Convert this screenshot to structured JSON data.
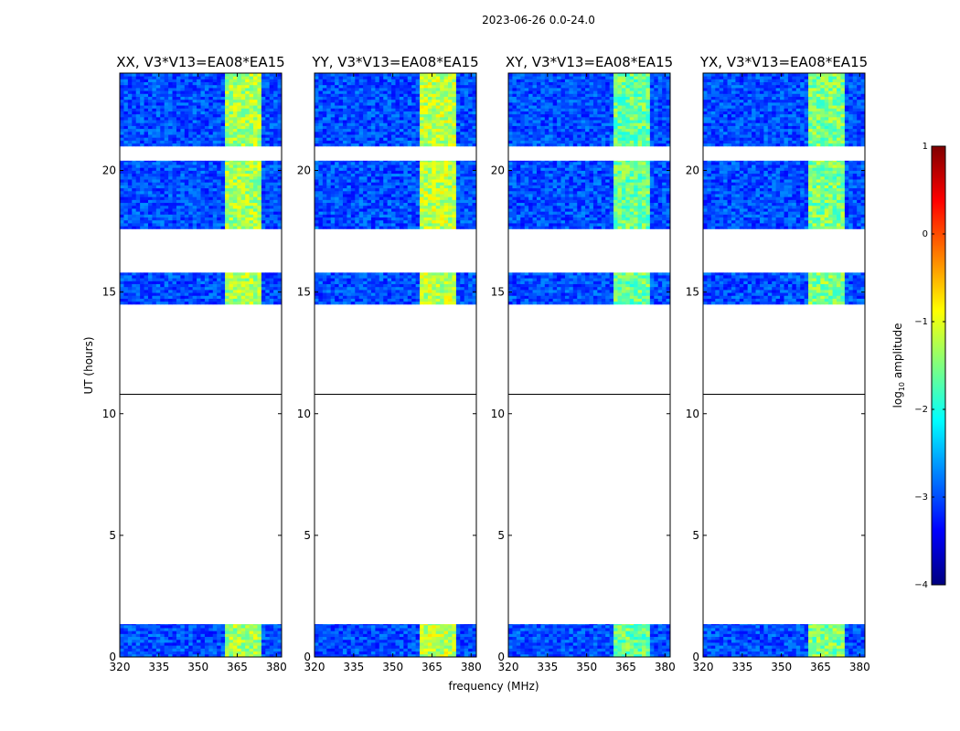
{
  "figure": {
    "suptitle": "2023-06-26 0.0-24.0",
    "xlabel": "frequency (MHz)",
    "ylabel": "UT (hours)"
  },
  "colorbar": {
    "label": "log",
    "label_sub": "10",
    "label_rest": " amplitude",
    "ticks": [
      1,
      0,
      -1,
      -2,
      -3,
      -4
    ],
    "tick_labels": [
      "1",
      "0",
      "−1",
      "−2",
      "−3",
      "−4"
    ],
    "range": [
      -4,
      1
    ],
    "colormap": "jet",
    "colors": [
      "#00007f",
      "#0000ff",
      "#007fff",
      "#00ffff",
      "#7fff7f",
      "#ffff00",
      "#ff7f00",
      "#ff0000",
      "#7f0000"
    ]
  },
  "chart_data": {
    "type": "heatmap",
    "title": "2023-06-26 0.0-24.0",
    "xlabel": "frequency (MHz)",
    "ylabel": "UT (hours)",
    "xlim": [
      320,
      382
    ],
    "ylim": [
      0,
      24
    ],
    "x_ticks": [
      320,
      335,
      350,
      365,
      380
    ],
    "x_tick_labels": [
      "320",
      "335",
      "350",
      "365",
      "380"
    ],
    "y_ticks": [
      0,
      5,
      10,
      15,
      20
    ],
    "y_tick_labels": [
      "0",
      "5",
      "10",
      "15",
      "20"
    ],
    "value_label": "log10 amplitude",
    "value_range": [
      -4,
      1
    ],
    "panels": [
      {
        "title": "XX, V3*V13=EA08*EA15",
        "rfi_band_mhz": [
          360,
          375
        ],
        "rfi_level": -1.3
      },
      {
        "title": "YY, V3*V13=EA08*EA15",
        "rfi_band_mhz": [
          360,
          375
        ],
        "rfi_level": -1.2
      },
      {
        "title": "XY, V3*V13=EA08*EA15",
        "rfi_band_mhz": [
          360,
          375
        ],
        "rfi_level": -1.6
      },
      {
        "title": "YX, V3*V13=EA08*EA15",
        "rfi_band_mhz": [
          360,
          375
        ],
        "rfi_level": -1.5
      }
    ],
    "data_time_ranges_hours": [
      [
        0.0,
        1.35
      ],
      [
        14.5,
        15.8
      ],
      [
        17.6,
        20.4
      ],
      [
        21.0,
        24.0
      ]
    ],
    "baseline_level": -3.0,
    "flagged_time_gaps_hours": [
      [
        1.35,
        14.5
      ],
      [
        15.8,
        17.6
      ],
      [
        20.4,
        21.0
      ]
    ],
    "white_lines_hours": [
      10.8
    ]
  }
}
